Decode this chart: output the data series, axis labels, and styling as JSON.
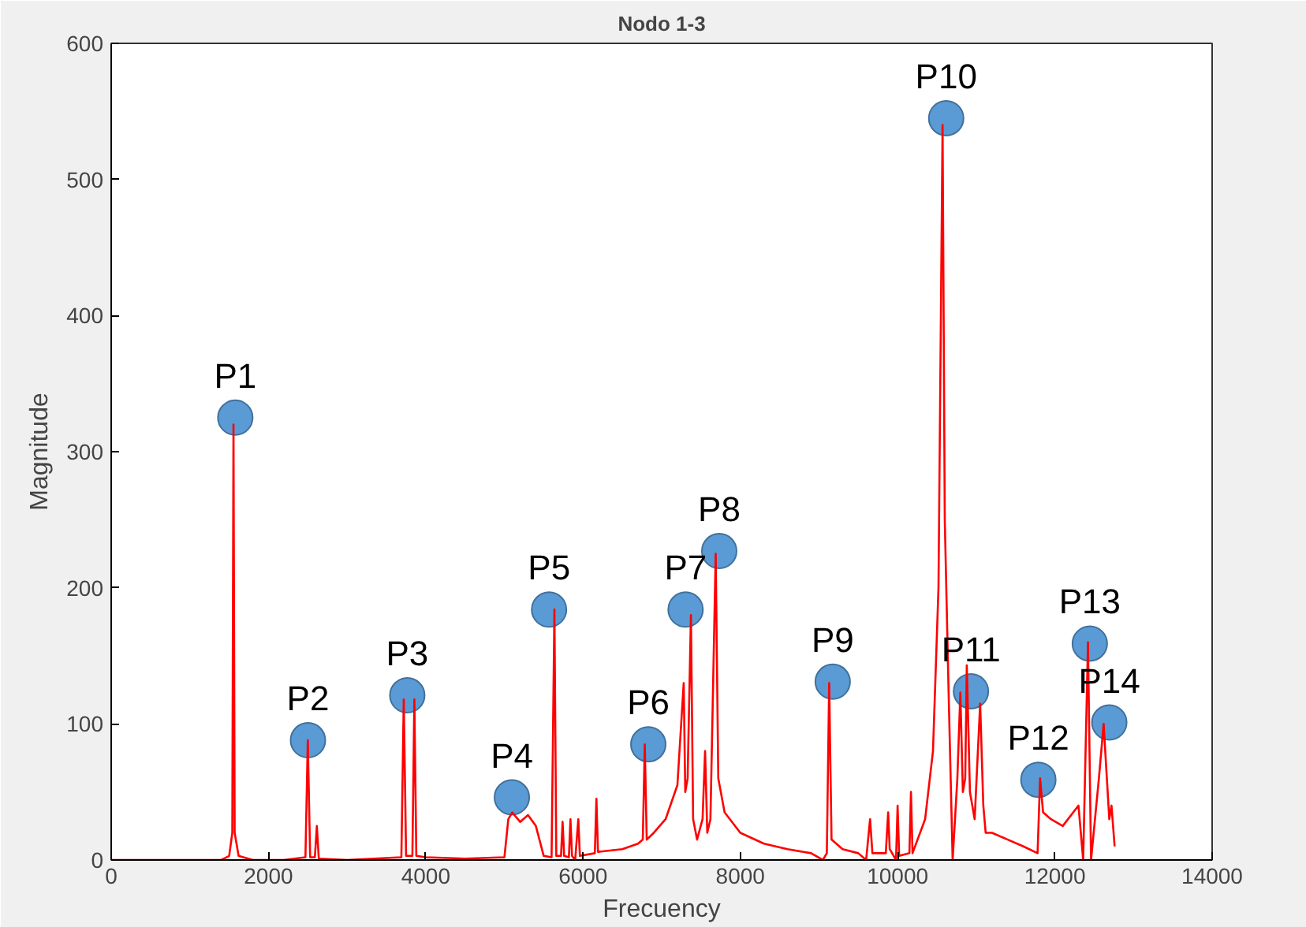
{
  "chart_data": {
    "type": "line",
    "title": "Nodo 1-3",
    "xlabel": "Frecuency",
    "ylabel": "Magnitude",
    "xlim": [
      0,
      14000
    ],
    "ylim": [
      0,
      600
    ],
    "xticks": [
      0,
      2000,
      4000,
      6000,
      8000,
      10000,
      12000,
      14000
    ],
    "yticks": [
      0,
      100,
      200,
      300,
      400,
      500,
      600
    ],
    "grid": false,
    "series": [
      {
        "color": "#ff0000",
        "marker": "none",
        "x": [
          0,
          1400,
          1500,
          1540,
          1555,
          1570,
          1620,
          1800,
          2000,
          2200,
          2470,
          2500,
          2530,
          2590,
          2615,
          2640,
          3000,
          3690,
          3720,
          3750,
          3830,
          3855,
          3880,
          4000,
          4500,
          5000,
          5050,
          5100,
          5200,
          5300,
          5400,
          5500,
          5600,
          5636,
          5660,
          5720,
          5740,
          5760,
          5820,
          5840,
          5860,
          5900,
          5940,
          5960,
          6150,
          6170,
          6190,
          6500,
          6700,
          6760,
          6785,
          6810,
          6900,
          7050,
          7200,
          7280,
          7300,
          7330,
          7372,
          7400,
          7450,
          7520,
          7552,
          7580,
          7620,
          7687,
          7720,
          7800,
          8000,
          8300,
          8600,
          8900,
          9050,
          9100,
          9130,
          9160,
          9300,
          9500,
          9600,
          9650,
          9680,
          9850,
          9880,
          9900,
          9980,
          10000,
          10020,
          10150,
          10170,
          10190,
          10350,
          10450,
          10520,
          10572,
          10600,
          10650,
          10700,
          10760,
          10798,
          10830,
          10860,
          10880,
          10920,
          10980,
          11050,
          11090,
          11120,
          11200,
          11400,
          11600,
          11780,
          11812,
          11850,
          11950,
          12100,
          12300,
          12360,
          12421,
          12460,
          12560,
          12620,
          12692,
          12720,
          12760
        ],
        "values": [
          0,
          0,
          3,
          20,
          320,
          20,
          3,
          0,
          0,
          0,
          2,
          88,
          2,
          2,
          25,
          1,
          0,
          2,
          118,
          3,
          3,
          118,
          3,
          2,
          1,
          2,
          30,
          35,
          28,
          33,
          25,
          3,
          2,
          184,
          3,
          3,
          28,
          3,
          2,
          30,
          3,
          0,
          30,
          3,
          5,
          45,
          6,
          8,
          12,
          15,
          85,
          15,
          20,
          30,
          55,
          130,
          50,
          60,
          180,
          30,
          15,
          30,
          80,
          20,
          30,
          225,
          60,
          35,
          20,
          12,
          8,
          5,
          0,
          5,
          130,
          15,
          8,
          5,
          0,
          30,
          5,
          5,
          35,
          8,
          0,
          40,
          3,
          5,
          50,
          5,
          30,
          80,
          200,
          540,
          250,
          120,
          0,
          60,
          123,
          50,
          60,
          143,
          50,
          30,
          115,
          40,
          20,
          20,
          15,
          10,
          5,
          60,
          35,
          30,
          25,
          40,
          0,
          160,
          0,
          60,
          100,
          30,
          40,
          10
        ]
      },
      {
        "type": "scatter",
        "color": "#5b9bd5",
        "marker": "circle",
        "x": [
          1578,
          2502,
          3765,
          5095,
          5568,
          6830,
          7304,
          7732,
          9175,
          10618,
          10933,
          11790,
          12444,
          12692
        ],
        "values": [
          325,
          88,
          121,
          46,
          184,
          85,
          184,
          227,
          131,
          545,
          124,
          59,
          159,
          101
        ]
      }
    ],
    "annotations": [
      {
        "text": "P1",
        "x": 1578,
        "y": 325
      },
      {
        "text": "P2",
        "x": 2502,
        "y": 88
      },
      {
        "text": "P3",
        "x": 3765,
        "y": 121
      },
      {
        "text": "P4",
        "x": 5095,
        "y": 46
      },
      {
        "text": "P5",
        "x": 5568,
        "y": 184
      },
      {
        "text": "P6",
        "x": 6830,
        "y": 85
      },
      {
        "text": "P7",
        "x": 7304,
        "y": 184
      },
      {
        "text": "P8",
        "x": 7732,
        "y": 227
      },
      {
        "text": "P9",
        "x": 9175,
        "y": 131
      },
      {
        "text": "P10",
        "x": 10618,
        "y": 545
      },
      {
        "text": "P11",
        "x": 10933,
        "y": 124
      },
      {
        "text": "P12",
        "x": 11790,
        "y": 59
      },
      {
        "text": "P13",
        "x": 12444,
        "y": 159
      },
      {
        "text": "P14",
        "x": 12692,
        "y": 101
      }
    ]
  }
}
